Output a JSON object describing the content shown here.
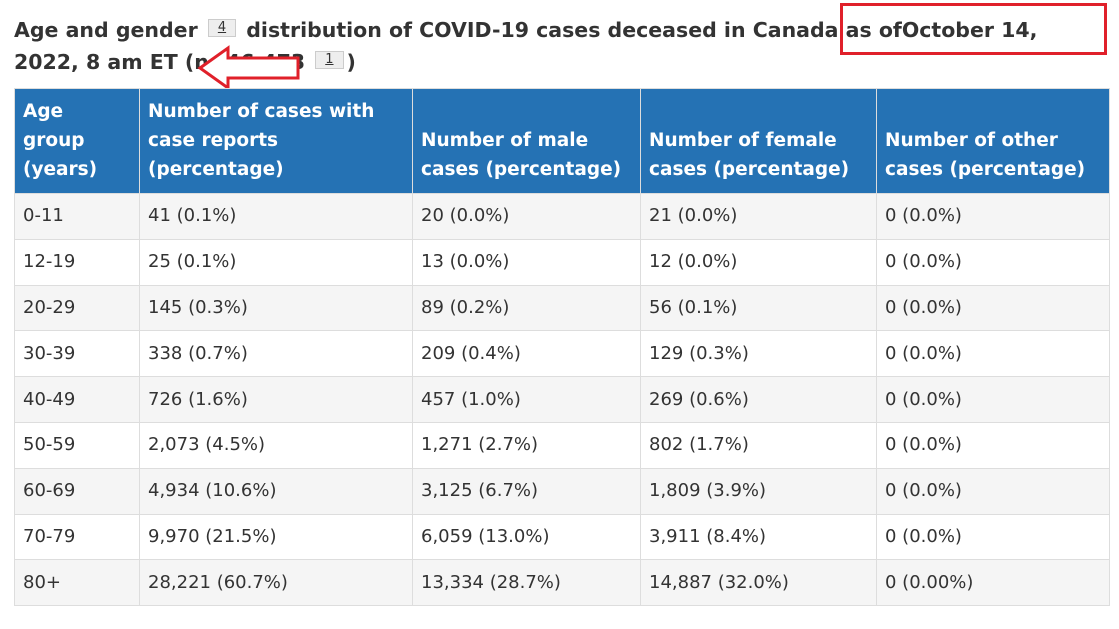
{
  "caption": {
    "part1": "Age and gender",
    "fn1": "4",
    "part2": "distribution of COVID-19 cases deceased in Canada as of",
    "date": "October 14, 2022, 8 am",
    "part3": "ET (n=46,473",
    "fn2": "1",
    "part4": ")"
  },
  "highlight_color": "#e0202a",
  "header_bg": "#2572b4",
  "table": {
    "headers": [
      "Age group (years)",
      "Number of cases with case reports (percentage)",
      "Number of male cases (percentage)",
      "Number of female cases (percentage)",
      "Number of other cases (percentage)"
    ],
    "rows": [
      [
        "0-11",
        "41 (0.1%)",
        "20 (0.0%)",
        "21 (0.0%)",
        "0 (0.0%)"
      ],
      [
        "12-19",
        "25 (0.1%)",
        "13 (0.0%)",
        "12 (0.0%)",
        "0 (0.0%)"
      ],
      [
        "20-29",
        "145 (0.3%)",
        "89 (0.2%)",
        "56 (0.1%)",
        "0 (0.0%)"
      ],
      [
        "30-39",
        "338 (0.7%)",
        "209 (0.4%)",
        "129 (0.3%)",
        "0 (0.0%)"
      ],
      [
        "40-49",
        "726 (1.6%)",
        "457 (1.0%)",
        "269 (0.6%)",
        "0 (0.0%)"
      ],
      [
        "50-59",
        "2,073 (4.5%)",
        "1,271 (2.7%)",
        "802 (1.7%)",
        "0 (0.0%)"
      ],
      [
        "60-69",
        "4,934 (10.6%)",
        "3,125 (6.7%)",
        "1,809 (3.9%)",
        "0 (0.0%)"
      ],
      [
        "70-79",
        "9,970 (21.5%)",
        "6,059 (13.0%)",
        "3,911 (8.4%)",
        "0 (0.0%)"
      ],
      [
        "80+",
        "28,221 (60.7%)",
        "13,334 (28.7%)",
        "14,887 (32.0%)",
        "0 (0.00%)"
      ]
    ]
  }
}
